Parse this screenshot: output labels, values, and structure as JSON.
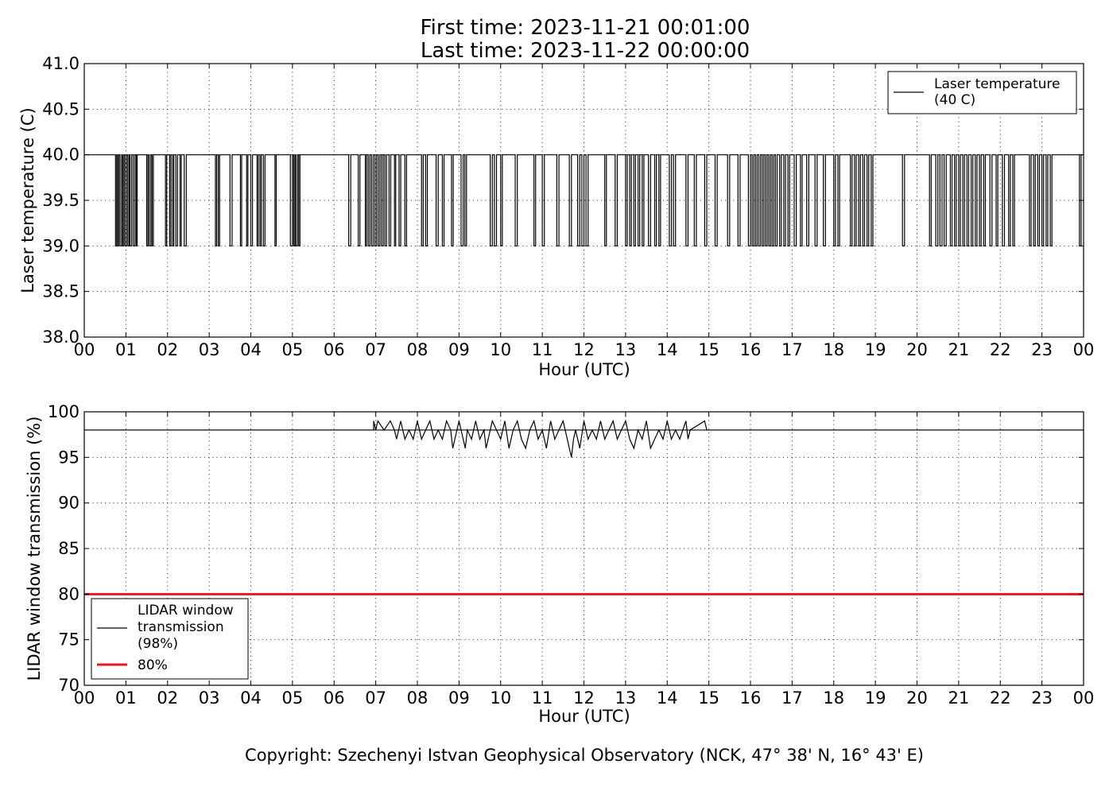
{
  "title_line1": "First time: 2023-11-21 00:01:00",
  "title_line2": "Last time: 2023-11-22 00:00:00",
  "copyright": "Copyright: Szechenyi Istvan Geophysical Observatory (NCK, 47° 38' N, 16° 43' E)",
  "chart_data": [
    {
      "type": "line",
      "ylabel": "Laser temperature (C)",
      "xlabel": "Hour (UTC)",
      "ylim": [
        38.0,
        41.0
      ],
      "xlim": [
        0,
        24
      ],
      "grid": true,
      "legend_position": "top-right",
      "x_ticks": [
        "00",
        "01",
        "02",
        "03",
        "04",
        "05",
        "06",
        "07",
        "08",
        "09",
        "10",
        "11",
        "12",
        "13",
        "14",
        "15",
        "16",
        "17",
        "18",
        "19",
        "20",
        "21",
        "22",
        "23",
        "00"
      ],
      "y_ticks": [
        "38.0",
        "38.5",
        "39.0",
        "39.5",
        "40.0",
        "40.5",
        "41.0"
      ],
      "series": [
        {
          "name": "Laser temperature\n(40 C)",
          "color": "#000000",
          "baseline": 40.0,
          "drop_value": 39.0,
          "drop_intervals_hours": [
            [
              0.75,
              0.78
            ],
            [
              0.8,
              0.83
            ],
            [
              0.86,
              0.9
            ],
            [
              0.92,
              0.95
            ],
            [
              0.98,
              1.02
            ],
            [
              1.05,
              1.08
            ],
            [
              1.1,
              1.14
            ],
            [
              1.18,
              1.22
            ],
            [
              1.25,
              1.27
            ],
            [
              1.5,
              1.53
            ],
            [
              1.56,
              1.6
            ],
            [
              1.63,
              1.66
            ],
            [
              1.95,
              1.98
            ],
            [
              2.05,
              2.08
            ],
            [
              2.12,
              2.15
            ],
            [
              2.2,
              2.24
            ],
            [
              2.3,
              2.33
            ],
            [
              2.4,
              2.45
            ],
            [
              3.15,
              3.18
            ],
            [
              3.22,
              3.25
            ],
            [
              3.5,
              3.55
            ],
            [
              3.75,
              3.78
            ],
            [
              3.9,
              3.93
            ],
            [
              4.0,
              4.04
            ],
            [
              4.15,
              4.18
            ],
            [
              4.22,
              4.25
            ],
            [
              4.3,
              4.34
            ],
            [
              4.58,
              4.61
            ],
            [
              4.95,
              5.0
            ],
            [
              5.03,
              5.06
            ],
            [
              5.08,
              5.12
            ],
            [
              5.15,
              5.18
            ],
            [
              6.35,
              6.4
            ],
            [
              6.58,
              6.62
            ],
            [
              6.75,
              6.78
            ],
            [
              6.82,
              6.86
            ],
            [
              6.9,
              6.94
            ],
            [
              6.98,
              7.02
            ],
            [
              7.06,
              7.1
            ],
            [
              7.14,
              7.18
            ],
            [
              7.22,
              7.26
            ],
            [
              7.32,
              7.36
            ],
            [
              7.45,
              7.48
            ],
            [
              7.56,
              7.6
            ],
            [
              7.7,
              7.74
            ],
            [
              8.1,
              8.14
            ],
            [
              8.2,
              8.24
            ],
            [
              8.45,
              8.5
            ],
            [
              8.6,
              8.64
            ],
            [
              8.82,
              8.86
            ],
            [
              9.05,
              9.1
            ],
            [
              9.14,
              9.18
            ],
            [
              9.75,
              9.8
            ],
            [
              9.85,
              9.9
            ],
            [
              10.0,
              10.04
            ],
            [
              10.35,
              10.4
            ],
            [
              10.8,
              10.84
            ],
            [
              11.0,
              11.05
            ],
            [
              11.35,
              11.4
            ],
            [
              11.65,
              11.7
            ],
            [
              11.85,
              11.9
            ],
            [
              11.95,
              12.0
            ],
            [
              12.05,
              12.1
            ],
            [
              12.5,
              12.54
            ],
            [
              12.75,
              12.8
            ],
            [
              13.0,
              13.04
            ],
            [
              13.1,
              13.14
            ],
            [
              13.2,
              13.24
            ],
            [
              13.3,
              13.34
            ],
            [
              13.4,
              13.44
            ],
            [
              13.55,
              13.6
            ],
            [
              13.7,
              13.74
            ],
            [
              13.8,
              13.84
            ],
            [
              14.05,
              14.1
            ],
            [
              14.15,
              14.2
            ],
            [
              14.45,
              14.5
            ],
            [
              14.65,
              14.7
            ],
            [
              14.9,
              14.95
            ],
            [
              15.15,
              15.2
            ],
            [
              15.45,
              15.5
            ],
            [
              15.7,
              15.75
            ],
            [
              15.95,
              16.0
            ],
            [
              16.04,
              16.08
            ],
            [
              16.12,
              16.16
            ],
            [
              16.2,
              16.24
            ],
            [
              16.28,
              16.32
            ],
            [
              16.36,
              16.4
            ],
            [
              16.44,
              16.48
            ],
            [
              16.52,
              16.56
            ],
            [
              16.6,
              16.64
            ],
            [
              16.7,
              16.74
            ],
            [
              16.8,
              16.84
            ],
            [
              16.9,
              16.94
            ],
            [
              17.05,
              17.1
            ],
            [
              17.2,
              17.24
            ],
            [
              17.35,
              17.4
            ],
            [
              17.55,
              17.6
            ],
            [
              17.75,
              17.8
            ],
            [
              18.0,
              18.04
            ],
            [
              18.1,
              18.14
            ],
            [
              18.4,
              18.44
            ],
            [
              18.5,
              18.54
            ],
            [
              18.6,
              18.64
            ],
            [
              18.7,
              18.74
            ],
            [
              18.8,
              18.84
            ],
            [
              18.9,
              18.94
            ],
            [
              19.65,
              19.7
            ],
            [
              20.3,
              20.34
            ],
            [
              20.45,
              20.5
            ],
            [
              20.55,
              20.6
            ],
            [
              20.65,
              20.7
            ],
            [
              20.8,
              20.84
            ],
            [
              20.9,
              20.94
            ],
            [
              21.0,
              21.04
            ],
            [
              21.1,
              21.14
            ],
            [
              21.2,
              21.24
            ],
            [
              21.3,
              21.34
            ],
            [
              21.4,
              21.44
            ],
            [
              21.5,
              21.54
            ],
            [
              21.6,
              21.64
            ],
            [
              21.75,
              21.8
            ],
            [
              21.9,
              21.94
            ],
            [
              22.05,
              22.1
            ],
            [
              22.2,
              22.24
            ],
            [
              22.3,
              22.34
            ],
            [
              22.7,
              22.74
            ],
            [
              22.8,
              22.84
            ],
            [
              22.9,
              22.94
            ],
            [
              23.0,
              23.04
            ],
            [
              23.1,
              23.14
            ],
            [
              23.2,
              23.24
            ],
            [
              23.9,
              23.94
            ]
          ]
        }
      ]
    },
    {
      "type": "line",
      "ylabel": "LIDAR window transmission (%)",
      "xlabel": "Hour (UTC)",
      "ylim": [
        70,
        100
      ],
      "xlim": [
        0,
        24
      ],
      "grid": true,
      "legend_position": "bottom-left",
      "x_ticks": [
        "00",
        "01",
        "02",
        "03",
        "04",
        "05",
        "06",
        "07",
        "08",
        "09",
        "10",
        "11",
        "12",
        "13",
        "14",
        "15",
        "16",
        "17",
        "18",
        "19",
        "20",
        "21",
        "22",
        "23",
        "00"
      ],
      "y_ticks": [
        "70",
        "75",
        "80",
        "85",
        "90",
        "95",
        "100"
      ],
      "series": [
        {
          "name": "LIDAR window\ntransmission\n(98%)",
          "color": "#000000",
          "baseline": 98,
          "active_range_hours": [
            6.95,
            14.95
          ],
          "fluctuation_points": [
            [
              6.95,
              99
            ],
            [
              7.0,
              98
            ],
            [
              7.05,
              99
            ],
            [
              7.2,
              98
            ],
            [
              7.35,
              99
            ],
            [
              7.45,
              98
            ],
            [
              7.5,
              97
            ],
            [
              7.6,
              99
            ],
            [
              7.7,
              97
            ],
            [
              7.8,
              98
            ],
            [
              7.9,
              97
            ],
            [
              8.0,
              99
            ],
            [
              8.1,
              97
            ],
            [
              8.2,
              98
            ],
            [
              8.3,
              99
            ],
            [
              8.4,
              97
            ],
            [
              8.5,
              98
            ],
            [
              8.6,
              97
            ],
            [
              8.7,
              99
            ],
            [
              8.8,
              98
            ],
            [
              8.85,
              96
            ],
            [
              8.9,
              97
            ],
            [
              9.0,
              99
            ],
            [
              9.1,
              97
            ],
            [
              9.15,
              96
            ],
            [
              9.2,
              98
            ],
            [
              9.3,
              97
            ],
            [
              9.4,
              99
            ],
            [
              9.5,
              97
            ],
            [
              9.6,
              98
            ],
            [
              9.65,
              96
            ],
            [
              9.7,
              97
            ],
            [
              9.8,
              99
            ],
            [
              9.9,
              98
            ],
            [
              10.0,
              97
            ],
            [
              10.1,
              99
            ],
            [
              10.2,
              96
            ],
            [
              10.3,
              98
            ],
            [
              10.4,
              99
            ],
            [
              10.5,
              97
            ],
            [
              10.6,
              96
            ],
            [
              10.7,
              98
            ],
            [
              10.8,
              99
            ],
            [
              10.9,
              97
            ],
            [
              11.0,
              98
            ],
            [
              11.1,
              96
            ],
            [
              11.2,
              99
            ],
            [
              11.3,
              97
            ],
            [
              11.4,
              98
            ],
            [
              11.5,
              99
            ],
            [
              11.6,
              97
            ],
            [
              11.7,
              95
            ],
            [
              11.75,
              97
            ],
            [
              11.8,
              98
            ],
            [
              11.9,
              96
            ],
            [
              12.0,
              99
            ],
            [
              12.1,
              97
            ],
            [
              12.2,
              98
            ],
            [
              12.3,
              97
            ],
            [
              12.4,
              99
            ],
            [
              12.5,
              97
            ],
            [
              12.6,
              98
            ],
            [
              12.7,
              99
            ],
            [
              12.8,
              97
            ],
            [
              12.9,
              98
            ],
            [
              13.0,
              99
            ],
            [
              13.1,
              97
            ],
            [
              13.2,
              96
            ],
            [
              13.3,
              98
            ],
            [
              13.4,
              97
            ],
            [
              13.5,
              99
            ],
            [
              13.6,
              96
            ],
            [
              13.7,
              97
            ],
            [
              13.8,
              98
            ],
            [
              13.9,
              97
            ],
            [
              14.0,
              99
            ],
            [
              14.1,
              97
            ],
            [
              14.2,
              98
            ],
            [
              14.3,
              97
            ],
            [
              14.45,
              99
            ],
            [
              14.5,
              97
            ],
            [
              14.55,
              98
            ],
            [
              14.9,
              99
            ],
            [
              14.95,
              98
            ]
          ]
        },
        {
          "name": "80%",
          "color": "#e41a1c",
          "constant": 80
        }
      ]
    }
  ]
}
